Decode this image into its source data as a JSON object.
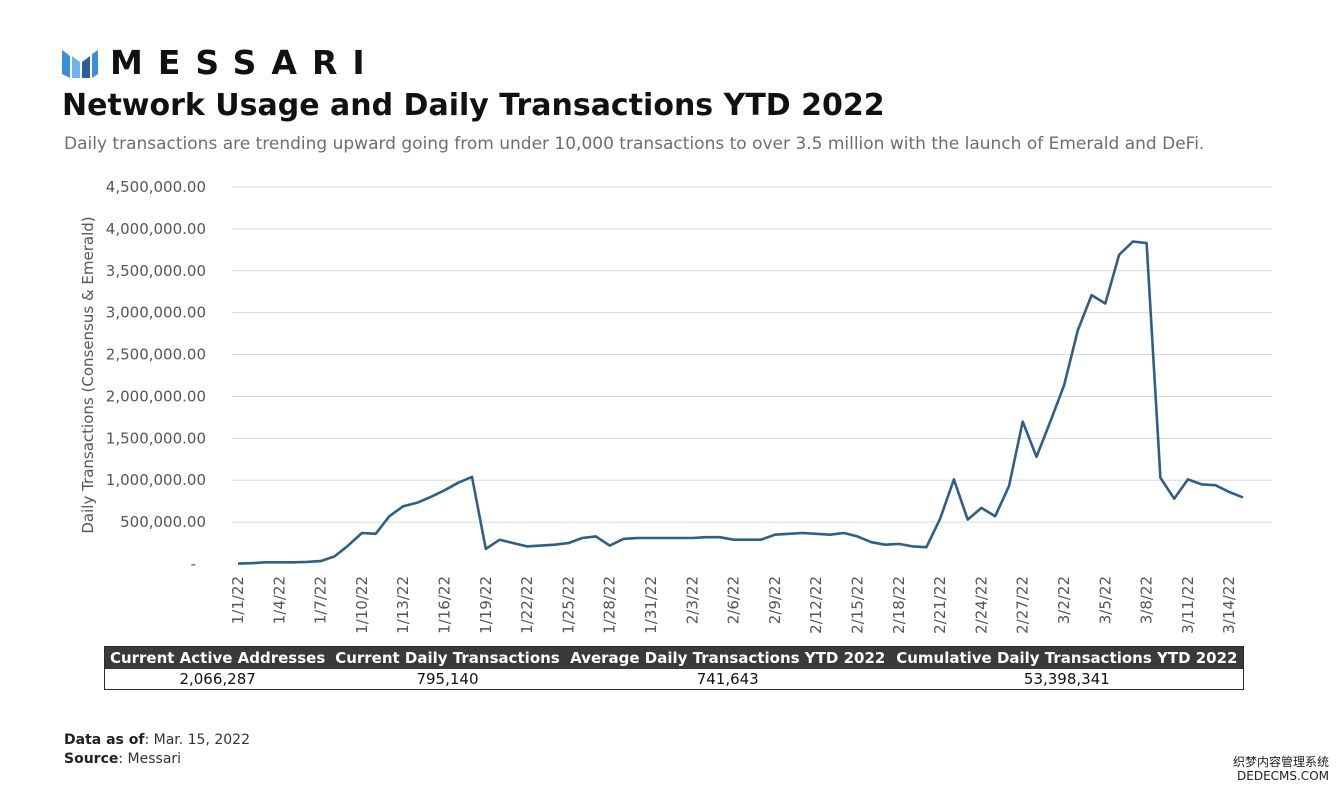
{
  "brand": {
    "name": "MESSARI",
    "logo_icon": "messari-logo-icon",
    "bar_colors": [
      "#3b8fd9",
      "#2a5f9a"
    ]
  },
  "header": {
    "title": "Network Usage and Daily Transactions YTD 2022",
    "subtitle": "Daily transactions are trending upward going from under 10,000 transactions to over 3.5 million with the launch of Emerald and DeFi."
  },
  "chart_data": {
    "type": "line",
    "title": "Network Usage and Daily Transactions YTD 2022",
    "ylabel": "Daily Transactions (Consensus & Emerald)",
    "xlabel": "",
    "ylim": [
      0,
      4500000
    ],
    "y_ticks": [
      "-",
      "500,000.00",
      "1,000,000.00",
      "1,500,000.00",
      "2,000,000.00",
      "2,500,000.00",
      "3,000,000.00",
      "3,500,000.00",
      "4,000,000.00",
      "4,500,000.00"
    ],
    "x_ticks": [
      "1/1/22",
      "1/4/22",
      "1/7/22",
      "1/10/22",
      "1/13/22",
      "1/16/22",
      "1/19/22",
      "1/22/22",
      "1/25/22",
      "1/28/22",
      "1/31/22",
      "2/3/22",
      "2/6/22",
      "2/9/22",
      "2/12/22",
      "2/15/22",
      "2/18/22",
      "2/21/22",
      "2/24/22",
      "2/27/22",
      "3/2/22",
      "3/5/22",
      "3/8/22",
      "3/11/22",
      "3/14/22"
    ],
    "grid": true,
    "line_color": "#2f5f87",
    "series": [
      {
        "x": [
          "1/1/22",
          "1/2/22",
          "1/3/22",
          "1/4/22",
          "1/5/22",
          "1/6/22",
          "1/7/22",
          "1/8/22",
          "1/9/22",
          "1/10/22",
          "1/11/22",
          "1/12/22",
          "1/13/22",
          "1/14/22",
          "1/15/22",
          "1/16/22",
          "1/17/22",
          "1/18/22",
          "1/19/22",
          "1/20/22",
          "1/21/22",
          "1/22/22",
          "1/23/22",
          "1/24/22",
          "1/25/22",
          "1/26/22",
          "1/27/22",
          "1/28/22",
          "1/29/22",
          "1/30/22",
          "1/31/22",
          "2/1/22",
          "2/2/22",
          "2/3/22",
          "2/4/22",
          "2/5/22",
          "2/6/22",
          "2/7/22",
          "2/8/22",
          "2/9/22",
          "2/10/22",
          "2/11/22",
          "2/12/22",
          "2/13/22",
          "2/14/22",
          "2/15/22",
          "2/16/22",
          "2/17/22",
          "2/18/22",
          "2/19/22",
          "2/20/22",
          "2/21/22",
          "2/22/22",
          "2/23/22",
          "2/24/22",
          "2/25/22",
          "2/26/22",
          "2/27/22",
          "2/28/22",
          "3/1/22",
          "3/2/22",
          "3/3/22",
          "3/4/22",
          "3/5/22",
          "3/6/22",
          "3/7/22",
          "3/8/22",
          "3/9/22",
          "3/10/22",
          "3/11/22",
          "3/12/22",
          "3/13/22",
          "3/14/22",
          "3/15/22"
        ],
        "values": [
          5000,
          10000,
          20000,
          20000,
          20000,
          25000,
          35000,
          90000,
          220000,
          370000,
          360000,
          570000,
          690000,
          730000,
          800000,
          880000,
          970000,
          1040000,
          180000,
          290000,
          250000,
          210000,
          220000,
          230000,
          250000,
          310000,
          330000,
          220000,
          300000,
          310000,
          310000,
          310000,
          310000,
          310000,
          320000,
          320000,
          290000,
          290000,
          290000,
          350000,
          360000,
          370000,
          360000,
          350000,
          370000,
          330000,
          260000,
          230000,
          240000,
          210000,
          200000,
          540000,
          1010000,
          530000,
          670000,
          570000,
          930000,
          1700000,
          1280000,
          1700000,
          2130000,
          2790000,
          3210000,
          3110000,
          3690000,
          3850000,
          3830000,
          1030000,
          780000,
          1010000,
          950000,
          940000,
          860000,
          795140
        ]
      }
    ]
  },
  "stats": {
    "headers": [
      "Current Active Addresses",
      "Current Daily Transactions",
      "Average Daily Transactions YTD 2022",
      "Cumulative Daily Transactions YTD 2022"
    ],
    "values": [
      "2,066,287",
      "795,140",
      "741,643",
      "53,398,341"
    ]
  },
  "footer": {
    "date_label": "Data as of",
    "date_value": ": Mar. 15, 2022",
    "source_label": "Source",
    "source_value": ": Messari"
  },
  "watermark": {
    "line1": "织梦内容管理系统",
    "line2": "DEDECMS.COM"
  }
}
